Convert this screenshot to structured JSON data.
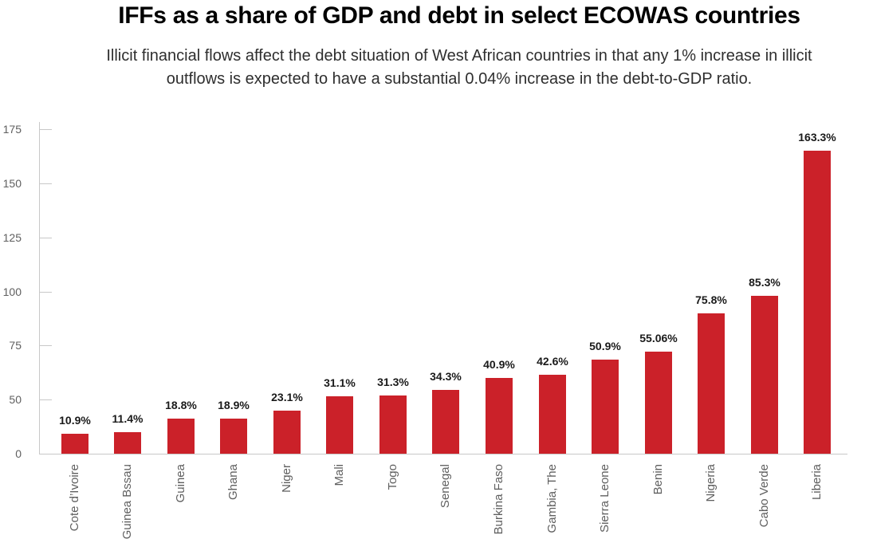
{
  "header": {
    "title": "IFFs as a share of GDP and debt in select ECOWAS countries",
    "subtitle_line1": "Illicit financial flows affect the debt situation of West African countries in that any 1% increase in illicit",
    "subtitle_line2": "outflows is expected to have a substantial 0.04% increase in the debt-to-GDP ratio."
  },
  "chart_data": {
    "type": "bar",
    "title": "IFFs as a share of GDP and debt in select ECOWAS countries",
    "subtitle": "Illicit financial flows affect the debt situation of West African countries in that any 1% increase in illicit outflows is expected to have a substantial 0.04% increase in the debt-to-GDP ratio.",
    "categories": [
      "Cote d’Ivoire",
      "Guinea Bssau",
      "Guinea",
      "Ghana",
      "Niger",
      "Mali",
      "Togo",
      "Senegal",
      "Burkina Faso",
      "Gambia, The",
      "Sierra Leone",
      "Benin",
      "Nigeria",
      "Cabo Verde",
      "Liberia"
    ],
    "values": [
      10.9,
      11.4,
      18.8,
      18.9,
      23.1,
      31.1,
      31.3,
      34.3,
      40.9,
      42.6,
      50.9,
      55.06,
      75.8,
      85.3,
      163.3
    ],
    "value_labels": [
      "10.9%",
      "11.4%",
      "18.8%",
      "18.9%",
      "23.1%",
      "31.1%",
      "31.3%",
      "34.3%",
      "40.9%",
      "42.6%",
      "50.9%",
      "55.06%",
      "75.8%",
      "85.3%",
      "163.3%"
    ],
    "xlabel": "",
    "ylabel": "",
    "ylim": [
      0,
      175
    ],
    "y_axis_tick_labels": [
      "0",
      "50",
      "75",
      "100",
      "125",
      "150",
      "175"
    ],
    "x_tick_rotation": "vertical-bottom-to-top",
    "grid": "off",
    "legend": "none",
    "bar_color": "#cb2129"
  },
  "colors": {
    "bar": "#cb2129",
    "axis_line": "#c8c8c8",
    "tick_label_text": "#5f5f5f",
    "category_label_text": "#5f5f5f",
    "value_label_text": "#1a1a1a",
    "title_text": "#000000",
    "subtitle_text": "#2e2e2e",
    "background": "#ffffff"
  }
}
